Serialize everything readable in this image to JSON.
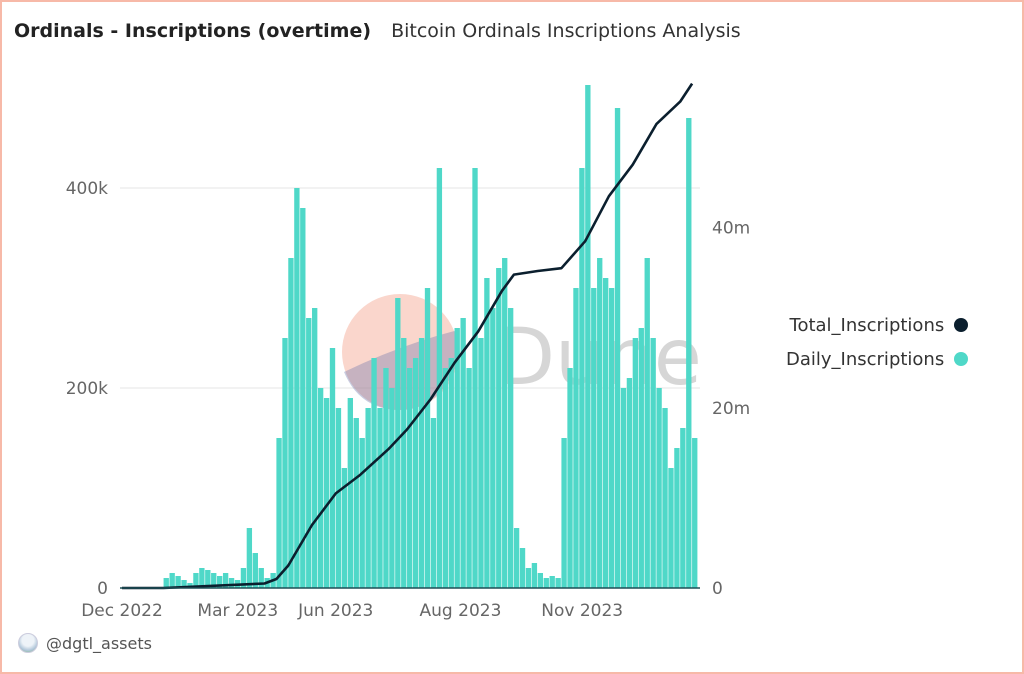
{
  "header": {
    "title": "Ordinals - Inscriptions (overtime)",
    "subtitle": "Bitcoin Ordinals Inscriptions Analysis"
  },
  "author": "@dgtl_assets",
  "watermark": "Dune",
  "legend": [
    {
      "label": "Total_Inscriptions",
      "color": "#0b1f2e"
    },
    {
      "label": "Daily_Inscriptions",
      "color": "#4fd8c8"
    }
  ],
  "chart_data": {
    "type": "bar+line",
    "x_ticks": [
      {
        "label": "Dec 2022",
        "index": 0
      },
      {
        "label": "Mar 2023",
        "index": 19.5
      },
      {
        "label": "Jun 2023",
        "index": 36
      },
      {
        "label": "Aug 2023",
        "index": 57
      },
      {
        "label": "Nov 2023",
        "index": 77.5
      }
    ],
    "y_left": {
      "ticks": [
        {
          "value": 0,
          "label": "0"
        },
        {
          "value": 200000,
          "label": "200k"
        },
        {
          "value": 400000,
          "label": "400k"
        }
      ],
      "range": [
        0,
        508000
      ]
    },
    "y_right": {
      "ticks": [
        {
          "value": 0,
          "label": "0"
        },
        {
          "value": 20000000,
          "label": "20m"
        },
        {
          "value": 40000000,
          "label": "40m"
        }
      ],
      "range": [
        0,
        56400000
      ]
    },
    "grid": true,
    "legend_position": "right",
    "series": [
      {
        "name": "Daily_Inscriptions",
        "type": "bar",
        "axis": "left",
        "color": "#4fd8c8",
        "values": [
          0,
          0,
          0,
          0,
          0,
          0,
          0,
          10000,
          15000,
          12000,
          8000,
          5000,
          15000,
          20000,
          18000,
          15000,
          12000,
          15000,
          10000,
          8000,
          20000,
          60000,
          35000,
          20000,
          10000,
          15000,
          150000,
          250000,
          330000,
          400000,
          380000,
          270000,
          280000,
          200000,
          190000,
          240000,
          180000,
          120000,
          190000,
          170000,
          150000,
          180000,
          230000,
          180000,
          220000,
          200000,
          290000,
          250000,
          220000,
          230000,
          250000,
          300000,
          170000,
          420000,
          220000,
          230000,
          260000,
          270000,
          220000,
          420000,
          250000,
          310000,
          280000,
          320000,
          330000,
          280000,
          60000,
          40000,
          20000,
          25000,
          15000,
          10000,
          12000,
          10000,
          150000,
          220000,
          300000,
          420000,
          503000,
          300000,
          330000,
          310000,
          300000,
          480000,
          200000,
          210000,
          250000,
          260000,
          330000,
          250000,
          200000,
          180000,
          120000,
          140000,
          160000,
          470000,
          150000
        ]
      },
      {
        "name": "Total_Inscriptions",
        "type": "line",
        "axis": "right",
        "color": "#0b1f2e",
        "points": [
          [
            0,
            0
          ],
          [
            7,
            0
          ],
          [
            24,
            500000
          ],
          [
            26,
            1000000
          ],
          [
            28,
            2500000
          ],
          [
            32,
            7000000
          ],
          [
            36,
            10500000
          ],
          [
            40,
            12500000
          ],
          [
            45,
            15500000
          ],
          [
            48,
            17600000
          ],
          [
            52,
            21000000
          ],
          [
            56,
            25000000
          ],
          [
            60,
            28500000
          ],
          [
            64,
            33000000
          ],
          [
            66,
            34800000
          ],
          [
            70,
            35200000
          ],
          [
            74,
            35500000
          ],
          [
            78,
            38500000
          ],
          [
            82,
            43500000
          ],
          [
            86,
            47000000
          ],
          [
            90,
            51500000
          ],
          [
            94,
            54000000
          ],
          [
            96,
            56000000
          ]
        ]
      }
    ]
  }
}
